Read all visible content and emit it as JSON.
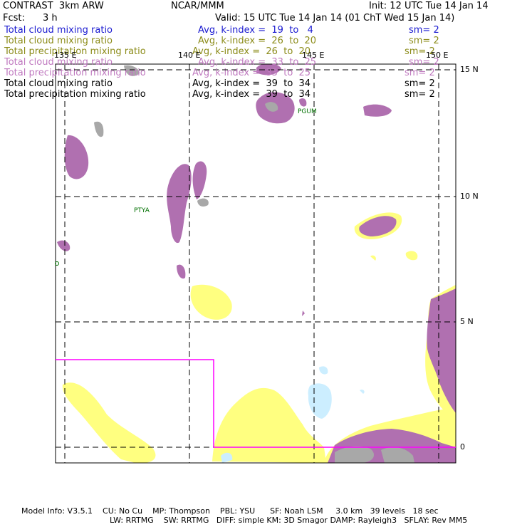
{
  "header": {
    "model": "CONTRAST  3km ARW",
    "org": "NCAR/MMM",
    "init": "Init: 12 UTC Tue 14 Jan 14",
    "fcst_label": "Fcst:",
    "fcst_value": "3 h",
    "valid": "Valid: 15 UTC Tue 14 Jan 14 (01 ChT Wed 15 Jan 14)"
  },
  "fields": [
    {
      "name": "Total cloud mixing ratio",
      "stat": "Avg, k-index =  19  to   4",
      "sm": "sm= 2",
      "color": "#1a1ad0"
    },
    {
      "name": "Total cloud mixing ratio",
      "stat": "Avg, k-index =  26  to  20",
      "sm": "sm= 2",
      "color": "#8c8c1a"
    },
    {
      "name": "Total precipitation mixing ratio",
      "stat": "Avg, k-index =  26  to  20",
      "sm": "sm= 2",
      "color": "#8c8c1a"
    },
    {
      "name": "Total cloud mixing ratio",
      "stat": "Avg, k-index =  33  to  25",
      "sm": "sm= 2",
      "color": "#c07ac0"
    },
    {
      "name": "Total precipitation mixing ratio",
      "stat": "Avg, k-index =  33  to  25",
      "sm": "sm= 2",
      "color": "#c07ac0"
    },
    {
      "name": "Total cloud mixing ratio",
      "stat": "Avg, k-index =  39  to  34",
      "sm": "sm= 2",
      "color": "#000000"
    },
    {
      "name": "Total precipitation mixing ratio",
      "stat": "Avg, k-index =  39  to  34",
      "sm": "sm= 2",
      "color": "#000000"
    }
  ],
  "map": {
    "lon_labels": [
      "135 E",
      "140 E",
      "145 E",
      "150 E"
    ],
    "lat_labels": [
      "15 N",
      "10 N",
      "5 N",
      "0"
    ],
    "stations": [
      "PGUM",
      "PTYA"
    ],
    "colors": {
      "yellow": "#ffff80",
      "purple": "#b070b0",
      "cyan": "#cceeff",
      "gray": "#a8a8a8",
      "box": "#ff00ff",
      "station": "#007000"
    }
  },
  "footer": {
    "line1": "Model Info: V3.5.1    CU: No Cu    MP: Thompson    PBL: YSU      SF: Noah LSM     3.0 km   39 levels   18 sec",
    "line2": "LW: RRTMG    SW: RRTMG   DIFF: simple KM: 3D Smagor DAMP: Rayleigh3   SFLAY: Rev MM5"
  }
}
